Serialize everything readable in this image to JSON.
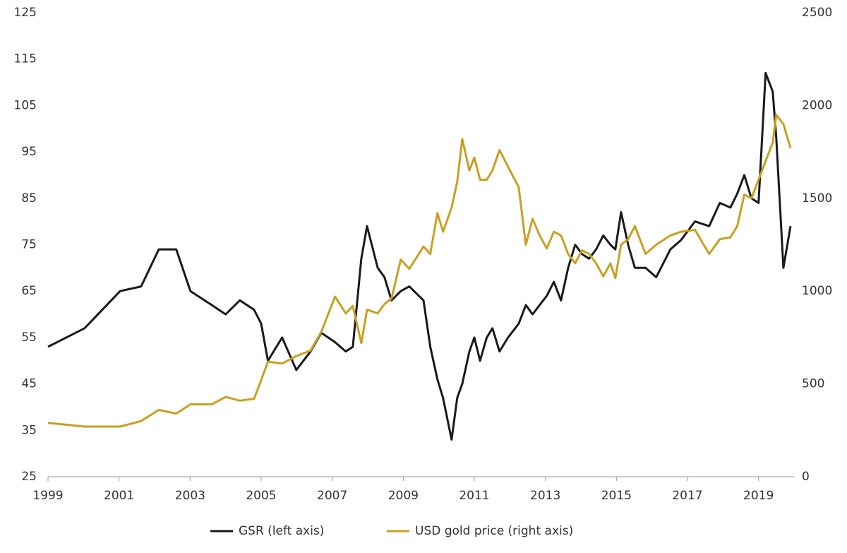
{
  "chart_data": {
    "type": "line",
    "x": [
      1999.0,
      2000.03,
      2001.03,
      2001.62,
      2002.12,
      2002.61,
      2003.01,
      2003.61,
      2004.0,
      2004.4,
      2004.8,
      2005.0,
      2005.19,
      2005.59,
      2005.99,
      2006.39,
      2006.69,
      2007.08,
      2007.38,
      2007.58,
      2007.82,
      2007.98,
      2008.28,
      2008.47,
      2008.67,
      2008.93,
      2009.17,
      2009.57,
      2009.76,
      2009.96,
      2010.12,
      2010.36,
      2010.52,
      2010.66,
      2010.86,
      2011.0,
      2011.16,
      2011.35,
      2011.51,
      2011.71,
      2011.95,
      2012.25,
      2012.45,
      2012.64,
      2012.84,
      2013.04,
      2013.24,
      2013.44,
      2013.64,
      2013.84,
      2014.03,
      2014.23,
      2014.43,
      2014.63,
      2014.83,
      2014.97,
      2015.13,
      2015.33,
      2015.52,
      2015.82,
      2016.12,
      2016.52,
      2016.82,
      2017.21,
      2017.61,
      2017.91,
      2018.21,
      2018.4,
      2018.6,
      2018.8,
      2019.0,
      2019.2,
      2019.4,
      2019.5,
      2019.7,
      2019.9
    ],
    "series": [
      {
        "name": "GSR (left axis)",
        "color": "#1a1a1a",
        "axis": "y",
        "values": [
          53,
          57,
          65,
          66,
          74,
          74,
          65,
          62,
          60,
          63,
          61,
          58,
          50,
          55,
          48,
          52,
          56,
          54,
          52,
          53,
          72,
          79,
          70,
          68,
          63,
          65,
          66,
          63,
          53,
          46,
          42,
          33,
          42,
          45,
          52,
          55,
          50,
          55,
          57,
          52,
          55,
          58,
          62,
          60,
          62,
          64,
          67,
          63,
          70,
          75,
          73,
          72,
          74,
          77,
          75,
          74,
          82,
          75,
          70,
          70,
          68,
          74,
          76,
          80,
          79,
          84,
          83,
          86,
          90,
          85,
          84,
          112,
          108,
          98,
          70,
          79
        ]
      },
      {
        "name": "USD gold price (right axis)",
        "color": "#c9a020",
        "axis": "y2",
        "values": [
          290,
          270,
          270,
          300,
          360,
          340,
          390,
          390,
          430,
          410,
          420,
          520,
          620,
          610,
          650,
          680,
          780,
          970,
          880,
          920,
          720,
          900,
          880,
          930,
          960,
          1170,
          1120,
          1240,
          1200,
          1420,
          1320,
          1450,
          1590,
          1820,
          1650,
          1720,
          1600,
          1600,
          1650,
          1760,
          1670,
          1560,
          1250,
          1390,
          1300,
          1230,
          1320,
          1300,
          1200,
          1150,
          1220,
          1200,
          1150,
          1080,
          1150,
          1070,
          1250,
          1280,
          1350,
          1200,
          1250,
          1300,
          1320,
          1330,
          1200,
          1280,
          1290,
          1350,
          1520,
          1500,
          1600,
          1700,
          1800,
          1950,
          1900,
          1770
        ]
      }
    ],
    "xlim": [
      1999,
      2020
    ],
    "xticks": [
      1999,
      2001,
      2003,
      2005,
      2007,
      2009,
      2011,
      2013,
      2015,
      2017,
      2019
    ],
    "ylim": [
      25,
      125
    ],
    "yticks": [
      25,
      35,
      45,
      55,
      65,
      75,
      85,
      95,
      105,
      115,
      125
    ],
    "y2lim": [
      0,
      2500
    ],
    "y2ticks": [
      0,
      500,
      1000,
      1500,
      2000,
      2500
    ],
    "legend": "bottom"
  }
}
